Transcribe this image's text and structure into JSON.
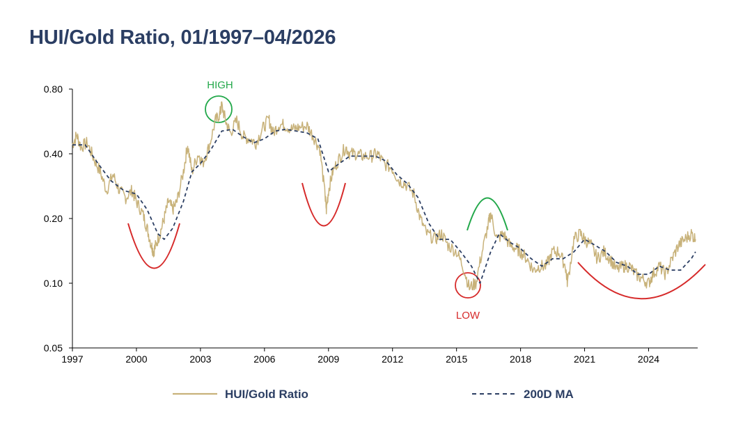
{
  "chart_data": {
    "type": "line",
    "title": "HUI/Gold Ratio, 01/1997–04/2026",
    "y_scale": "log",
    "ylim": [
      0.05,
      0.8
    ],
    "xlim": [
      1997.0,
      2026.3
    ],
    "y_ticks": [
      {
        "value": 0.05,
        "label": "0.05"
      },
      {
        "value": 0.1,
        "label": "0.10"
      },
      {
        "value": 0.2,
        "label": "0.20"
      },
      {
        "value": 0.4,
        "label": "0.40"
      },
      {
        "value": 0.8,
        "label": "0.80"
      }
    ],
    "x_ticks": [
      {
        "value": 1997,
        "label": "1997"
      },
      {
        "value": 2000,
        "label": "2000"
      },
      {
        "value": 2003,
        "label": "2003"
      },
      {
        "value": 2006,
        "label": "2006"
      },
      {
        "value": 2009,
        "label": "2009"
      },
      {
        "value": 2012,
        "label": "2012"
      },
      {
        "value": 2015,
        "label": "2015"
      },
      {
        "value": 2018,
        "label": "2018"
      },
      {
        "value": 2021,
        "label": "2021"
      },
      {
        "value": 2024,
        "label": "2024"
      }
    ],
    "grid": false,
    "legend_position": "bottom",
    "series": [
      {
        "name": "HUI/Gold Ratio",
        "color": "#c8b27a",
        "style": "solid",
        "points": [
          [
            1997.0,
            0.44
          ],
          [
            1997.2,
            0.49
          ],
          [
            1997.4,
            0.43
          ],
          [
            1997.7,
            0.45
          ],
          [
            1998.0,
            0.38
          ],
          [
            1998.3,
            0.33
          ],
          [
            1998.6,
            0.27
          ],
          [
            1998.9,
            0.32
          ],
          [
            1999.2,
            0.27
          ],
          [
            1999.5,
            0.25
          ],
          [
            1999.8,
            0.27
          ],
          [
            2000.0,
            0.24
          ],
          [
            2000.3,
            0.21
          ],
          [
            2000.5,
            0.18
          ],
          [
            2000.7,
            0.15
          ],
          [
            2000.8,
            0.14
          ],
          [
            2000.9,
            0.15
          ],
          [
            2001.1,
            0.17
          ],
          [
            2001.3,
            0.2
          ],
          [
            2001.5,
            0.24
          ],
          [
            2001.7,
            0.22
          ],
          [
            2001.9,
            0.24
          ],
          [
            2002.2,
            0.33
          ],
          [
            2002.4,
            0.44
          ],
          [
            2002.6,
            0.33
          ],
          [
            2002.9,
            0.4
          ],
          [
            2003.1,
            0.36
          ],
          [
            2003.4,
            0.43
          ],
          [
            2003.7,
            0.57
          ],
          [
            2003.9,
            0.61
          ],
          [
            2004.0,
            0.67
          ],
          [
            2004.2,
            0.56
          ],
          [
            2004.4,
            0.5
          ],
          [
            2004.7,
            0.57
          ],
          [
            2005.0,
            0.48
          ],
          [
            2005.3,
            0.47
          ],
          [
            2005.6,
            0.45
          ],
          [
            2005.9,
            0.52
          ],
          [
            2006.2,
            0.58
          ],
          [
            2006.4,
            0.5
          ],
          [
            2006.7,
            0.55
          ],
          [
            2007.0,
            0.54
          ],
          [
            2007.3,
            0.52
          ],
          [
            2007.6,
            0.53
          ],
          [
            2008.0,
            0.54
          ],
          [
            2008.3,
            0.48
          ],
          [
            2008.6,
            0.42
          ],
          [
            2008.85,
            0.25
          ],
          [
            2008.9,
            0.22
          ],
          [
            2009.0,
            0.27
          ],
          [
            2009.2,
            0.33
          ],
          [
            2009.5,
            0.38
          ],
          [
            2009.8,
            0.43
          ],
          [
            2010.0,
            0.4
          ],
          [
            2010.3,
            0.4
          ],
          [
            2010.6,
            0.39
          ],
          [
            2011.0,
            0.39
          ],
          [
            2011.3,
            0.4
          ],
          [
            2011.6,
            0.36
          ],
          [
            2012.0,
            0.34
          ],
          [
            2012.3,
            0.3
          ],
          [
            2012.6,
            0.29
          ],
          [
            2013.0,
            0.26
          ],
          [
            2013.3,
            0.2
          ],
          [
            2013.6,
            0.17
          ],
          [
            2014.0,
            0.16
          ],
          [
            2014.3,
            0.17
          ],
          [
            2014.6,
            0.15
          ],
          [
            2015.0,
            0.14
          ],
          [
            2015.3,
            0.12
          ],
          [
            2015.6,
            0.095
          ],
          [
            2015.9,
            0.1
          ],
          [
            2016.2,
            0.14
          ],
          [
            2016.5,
            0.19
          ],
          [
            2016.6,
            0.21
          ],
          [
            2016.9,
            0.16
          ],
          [
            2017.2,
            0.17
          ],
          [
            2017.5,
            0.15
          ],
          [
            2017.8,
            0.145
          ],
          [
            2018.0,
            0.14
          ],
          [
            2018.3,
            0.13
          ],
          [
            2018.6,
            0.115
          ],
          [
            2018.9,
            0.12
          ],
          [
            2019.2,
            0.12
          ],
          [
            2019.5,
            0.14
          ],
          [
            2019.8,
            0.14
          ],
          [
            2020.1,
            0.12
          ],
          [
            2020.2,
            0.1
          ],
          [
            2020.5,
            0.16
          ],
          [
            2020.8,
            0.17
          ],
          [
            2021.0,
            0.16
          ],
          [
            2021.3,
            0.15
          ],
          [
            2021.6,
            0.13
          ],
          [
            2021.9,
            0.14
          ],
          [
            2022.2,
            0.13
          ],
          [
            2022.5,
            0.115
          ],
          [
            2022.8,
            0.12
          ],
          [
            2023.1,
            0.12
          ],
          [
            2023.4,
            0.11
          ],
          [
            2023.7,
            0.105
          ],
          [
            2024.0,
            0.1
          ],
          [
            2024.2,
            0.11
          ],
          [
            2024.5,
            0.12
          ],
          [
            2024.8,
            0.11
          ],
          [
            2025.1,
            0.13
          ],
          [
            2025.4,
            0.15
          ],
          [
            2025.7,
            0.16
          ],
          [
            2026.0,
            0.17
          ],
          [
            2026.2,
            0.16
          ]
        ]
      },
      {
        "name": "200D MA",
        "color": "#2b3e63",
        "style": "dashed",
        "points": [
          [
            1997.0,
            0.44
          ],
          [
            1997.6,
            0.44
          ],
          [
            1998.2,
            0.36
          ],
          [
            1998.8,
            0.3
          ],
          [
            1999.4,
            0.27
          ],
          [
            2000.0,
            0.26
          ],
          [
            2000.5,
            0.22
          ],
          [
            2001.0,
            0.17
          ],
          [
            2001.3,
            0.16
          ],
          [
            2001.7,
            0.18
          ],
          [
            2002.2,
            0.24
          ],
          [
            2002.6,
            0.33
          ],
          [
            2003.0,
            0.36
          ],
          [
            2003.5,
            0.42
          ],
          [
            2004.0,
            0.51
          ],
          [
            2004.5,
            0.52
          ],
          [
            2005.0,
            0.48
          ],
          [
            2005.5,
            0.45
          ],
          [
            2006.0,
            0.47
          ],
          [
            2006.5,
            0.51
          ],
          [
            2007.0,
            0.52
          ],
          [
            2007.5,
            0.51
          ],
          [
            2008.0,
            0.5
          ],
          [
            2008.5,
            0.47
          ],
          [
            2009.0,
            0.33
          ],
          [
            2009.5,
            0.36
          ],
          [
            2010.0,
            0.39
          ],
          [
            2010.6,
            0.39
          ],
          [
            2011.2,
            0.39
          ],
          [
            2011.7,
            0.37
          ],
          [
            2012.2,
            0.32
          ],
          [
            2012.7,
            0.29
          ],
          [
            2013.2,
            0.25
          ],
          [
            2013.7,
            0.19
          ],
          [
            2014.2,
            0.16
          ],
          [
            2014.7,
            0.16
          ],
          [
            2015.2,
            0.14
          ],
          [
            2015.7,
            0.12
          ],
          [
            2016.1,
            0.1
          ],
          [
            2016.6,
            0.14
          ],
          [
            2017.0,
            0.17
          ],
          [
            2017.5,
            0.155
          ],
          [
            2018.0,
            0.145
          ],
          [
            2018.5,
            0.13
          ],
          [
            2019.0,
            0.12
          ],
          [
            2019.5,
            0.13
          ],
          [
            2020.0,
            0.13
          ],
          [
            2020.5,
            0.14
          ],
          [
            2021.0,
            0.16
          ],
          [
            2021.5,
            0.15
          ],
          [
            2022.0,
            0.14
          ],
          [
            2022.5,
            0.125
          ],
          [
            2023.0,
            0.12
          ],
          [
            2023.5,
            0.11
          ],
          [
            2024.0,
            0.11
          ],
          [
            2024.5,
            0.12
          ],
          [
            2025.0,
            0.115
          ],
          [
            2025.5,
            0.115
          ],
          [
            2026.0,
            0.13
          ],
          [
            2026.2,
            0.14
          ]
        ]
      }
    ],
    "annotations": [
      {
        "label": "HIGH",
        "color": "#22a84a"
      },
      {
        "label": "LOW",
        "color": "#d62a2a"
      }
    ]
  },
  "legend": {
    "series1_label": "HUI/Gold Ratio",
    "series2_label": "200D MA"
  }
}
